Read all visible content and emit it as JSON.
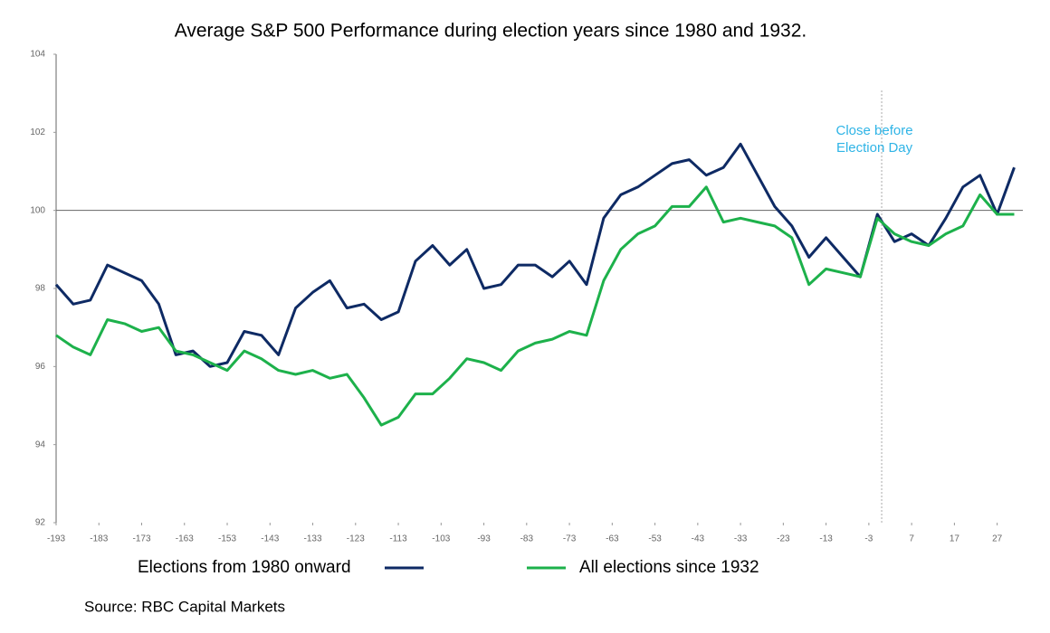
{
  "chart_data": {
    "type": "line",
    "title": "Average S&P 500 Performance during election years since 1980 and 1932.",
    "source": "Source: RBC Capital Markets",
    "annotation": [
      "Close before",
      "Election Day"
    ],
    "vline": 0,
    "hline": 100,
    "x": [
      -193,
      -189,
      -185,
      -181,
      -177,
      -173,
      -169,
      -165,
      -161,
      -157,
      -153,
      -149,
      -145,
      -141,
      -137,
      -133,
      -129,
      -125,
      -121,
      -117,
      -113,
      -109,
      -105,
      -101,
      -97,
      -93,
      -89,
      -85,
      -81,
      -77,
      -73,
      -69,
      -65,
      -61,
      -57,
      -53,
      -49,
      -45,
      -41,
      -37,
      -33,
      -29,
      -25,
      -21,
      -17,
      -13,
      -9,
      -5,
      -1,
      3,
      7,
      11,
      15,
      19,
      23,
      27,
      31
    ],
    "series": [
      {
        "name": "Elections from 1980 onward",
        "color": "#0e2a64",
        "values": [
          98.1,
          97.6,
          97.7,
          98.6,
          98.4,
          98.2,
          97.6,
          96.3,
          96.4,
          96.0,
          96.1,
          96.9,
          96.8,
          96.3,
          97.5,
          97.9,
          98.2,
          97.5,
          97.6,
          97.2,
          97.4,
          98.7,
          99.1,
          98.6,
          99.0,
          98.0,
          98.1,
          98.6,
          98.6,
          98.3,
          98.7,
          98.1,
          99.8,
          100.4,
          100.6,
          100.9,
          101.2,
          101.3,
          100.9,
          101.1,
          101.7,
          100.9,
          100.1,
          99.6,
          98.8,
          99.3,
          98.8,
          98.3,
          99.9,
          99.2,
          99.4,
          99.1,
          99.8,
          100.6,
          100.9,
          99.9,
          101.1
        ]
      },
      {
        "name": "All elections since 1932",
        "color": "#1db14b",
        "values": [
          96.8,
          96.5,
          96.3,
          97.2,
          97.1,
          96.9,
          97.0,
          96.4,
          96.3,
          96.1,
          95.9,
          96.4,
          96.2,
          95.9,
          95.8,
          95.9,
          95.7,
          95.8,
          95.2,
          94.5,
          94.7,
          95.3,
          95.3,
          95.7,
          96.2,
          96.1,
          95.9,
          96.4,
          96.6,
          96.7,
          96.9,
          96.8,
          98.2,
          99.0,
          99.4,
          99.6,
          100.1,
          100.1,
          100.6,
          99.7,
          99.8,
          99.7,
          99.6,
          99.3,
          98.1,
          98.5,
          98.4,
          98.3,
          99.8,
          99.4,
          99.2,
          99.1,
          99.4,
          99.6,
          100.4,
          99.9,
          99.9
        ]
      }
    ],
    "xlim": [
      -193,
      33
    ],
    "xticks": [
      -193,
      -183,
      -173,
      -163,
      -153,
      -143,
      -133,
      -123,
      -113,
      -103,
      -93,
      -83,
      -73,
      -63,
      -53,
      -43,
      -33,
      -23,
      -13,
      -3,
      7,
      17,
      27
    ],
    "ylim": [
      92,
      104
    ],
    "yticks": [
      92,
      94,
      96,
      98,
      100,
      102,
      104
    ]
  }
}
